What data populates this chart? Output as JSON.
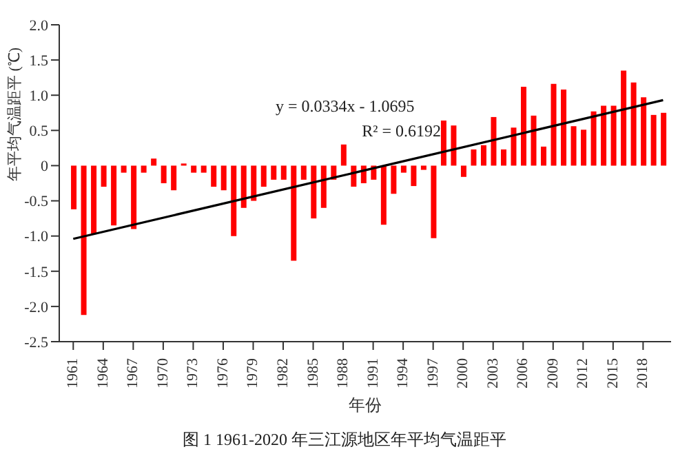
{
  "chart_data": {
    "type": "bar",
    "title": "图 1 1961-2020 年三江源地区年平均气温距平",
    "xlabel": "年份",
    "ylabel": "年平均气温距平 (℃)",
    "annotations": [
      "y = 0.0334x - 1.0695",
      "R² = 0.6192"
    ],
    "x": [
      1961,
      1962,
      1963,
      1964,
      1965,
      1966,
      1967,
      1968,
      1969,
      1970,
      1971,
      1972,
      1973,
      1974,
      1975,
      1976,
      1977,
      1978,
      1979,
      1980,
      1981,
      1982,
      1983,
      1984,
      1985,
      1986,
      1987,
      1988,
      1989,
      1990,
      1991,
      1992,
      1993,
      1994,
      1995,
      1996,
      1997,
      1998,
      1999,
      2000,
      2001,
      2002,
      2003,
      2004,
      2005,
      2006,
      2007,
      2008,
      2009,
      2010,
      2011,
      2012,
      2013,
      2014,
      2015,
      2016,
      2017,
      2018,
      2019,
      2020
    ],
    "series": [
      {
        "color": "#ff0000",
        "values": [
          -0.62,
          -2.12,
          -0.97,
          -0.3,
          -0.85,
          -0.1,
          -0.9,
          -0.1,
          0.1,
          -0.25,
          -0.35,
          0.03,
          -0.1,
          -0.1,
          -0.3,
          -0.35,
          -1.0,
          -0.6,
          -0.5,
          -0.3,
          -0.2,
          -0.2,
          -1.35,
          -0.2,
          -0.75,
          -0.6,
          -0.2,
          0.3,
          -0.3,
          -0.25,
          -0.2,
          -0.84,
          -0.4,
          -0.1,
          -0.29,
          -0.06,
          -1.03,
          0.64,
          0.57,
          -0.16,
          0.23,
          0.29,
          0.69,
          0.23,
          0.54,
          1.12,
          0.71,
          0.27,
          1.16,
          1.08,
          0.56,
          0.51,
          0.77,
          0.85,
          0.85,
          1.35,
          1.18,
          0.97,
          0.72,
          0.75
        ]
      },
      {
        "type": "line",
        "color": "#000000",
        "x": [
          1961,
          2020
        ],
        "values": [
          -1.04,
          0.93
        ]
      }
    ],
    "xlim": [
      1959.6,
      2020.8
    ],
    "xticks": [
      1961,
      1964,
      1967,
      1970,
      1973,
      1976,
      1979,
      1982,
      1985,
      1988,
      1991,
      1994,
      1997,
      2000,
      2003,
      2006,
      2009,
      2012,
      2015,
      2018
    ],
    "ylim": [
      -2.5,
      2.0
    ],
    "yticks": [
      {
        "value": -2.5,
        "label": "-2.5"
      },
      {
        "value": -2.0,
        "label": "-2.0"
      },
      {
        "value": -1.5,
        "label": "-1.5"
      },
      {
        "value": -1.0,
        "label": "-1.0"
      },
      {
        "value": -0.5,
        "label": "-0.5"
      },
      0,
      {
        "value": 0.5,
        "label": "0.5"
      },
      {
        "value": 1.0,
        "label": "1.0"
      },
      {
        "value": 1.5,
        "label": "1.5"
      },
      {
        "value": 2.0,
        "label": "2.0"
      }
    ]
  }
}
